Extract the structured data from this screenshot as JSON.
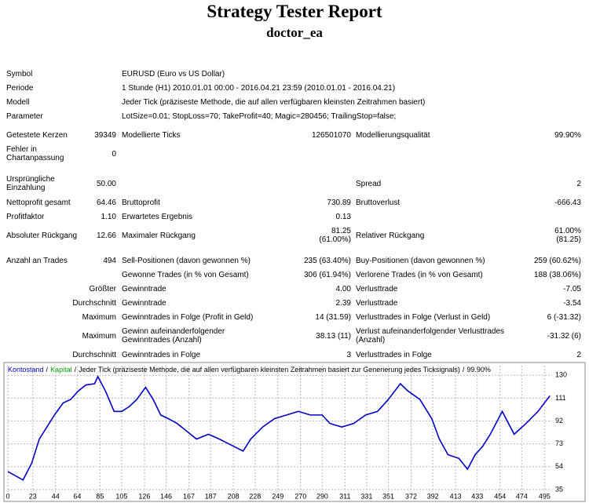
{
  "header": {
    "title": "Strategy Tester Report",
    "subtitle": "doctor_ea"
  },
  "settings": [
    {
      "label": "Symbol",
      "value": "EURUSD (Euro vs US Dollar)"
    },
    {
      "label": "Periode",
      "value": "1 Stunde (H1) 2010.01.01 00:00 - 2016.04.21 23:59 (2010.01.01 - 2016.04.21)"
    },
    {
      "label": "Modell",
      "value": "Jeder Tick (präziseste Methode, die auf allen verfügbaren kleinsten Zeitrahmen basiert)"
    },
    {
      "label": "Parameter",
      "value": "LotSize=0.01; StopLoss=70; TakeProfit=40; Magic=280456; TrailingStop=false;"
    }
  ],
  "stats": [
    [
      "Getestete Kerzen",
      "39349",
      "Modellierte Ticks",
      "126501070",
      "Modellierungsqualität",
      "99.90%"
    ],
    [
      "Fehler in Chartanpassung",
      "0",
      null,
      null,
      null,
      null
    ],
    [
      "Ursprüngliche Einzahlung",
      "50.00",
      null,
      null,
      "Spread",
      "2"
    ],
    [
      "Nettoprofit gesamt",
      "64.46",
      "Bruttoprofit",
      "730.89",
      "Bruttoverlust",
      "-666.43"
    ],
    [
      "Profitfaktor",
      "1.10",
      "Erwartetes Ergebnis",
      "0.13",
      null,
      null
    ],
    [
      "Absoluter Rückgang",
      "12.66",
      "Maximaler Rückgang",
      "81.25 (61.00%)",
      "Relativer Rückgang",
      "61.00% (81.25)"
    ],
    [
      "Anzahl an Trades",
      "494",
      "Sell-Positionen (davon gewonnen %)",
      "235 (63.40%)",
      "Buy-Positionen (davon gewonnen %)",
      "259 (60.62%)"
    ],
    [
      null,
      null,
      "Gewonne Trades (in % von Gesamt)",
      "306 (61.94%)",
      "Verlorene Trades (in % von Gesamt)",
      "188 (38.06%)"
    ],
    [
      null,
      "Größter",
      "Gewinntrade",
      "4.00",
      "Verlusttrade",
      "-7.05"
    ],
    [
      null,
      "Durchschnitt",
      "Gewinntrade",
      "2.39",
      "Verlusttrade",
      "-3.54"
    ],
    [
      null,
      "Maximum",
      "Gewinntrades in Folge (Profit in Geld)",
      "14 (31.59)",
      "Verlusttrades in Folge (Verlust in Geld)",
      "6 (-31.32)"
    ],
    [
      null,
      "Maximum",
      "Gewinn aufeinanderfolgender Gewinntrades (Anzahl)",
      "38.13 (11)",
      "Verlust aufeinanderfolgender Verlusttrades (Anzahl)",
      "-31.32 (6)"
    ],
    [
      null,
      "Durchschnitt",
      "Gewinntrades in Folge",
      "3",
      "Verlusttrades in Folge",
      "2"
    ]
  ],
  "chart_data": {
    "type": "line",
    "legend": {
      "equity": "Kapital",
      "equity_color": "#00a000",
      "separator": "/",
      "model": "Jeder Tick (präziseste Methode, die auf allen verfügbaren kleinsten Zeitrahmen basiert zur Generierung jedes Ticksignals)",
      "quality": "99.90%"
    },
    "x": [
      0,
      14,
      22,
      29,
      36,
      43,
      51,
      58,
      65,
      72,
      80,
      83,
      90,
      98,
      105,
      112,
      119,
      127,
      134,
      141,
      148,
      156,
      163,
      174,
      185,
      195,
      206,
      217,
      224,
      235,
      246,
      257,
      268,
      279,
      290,
      297,
      308,
      319,
      330,
      341,
      351,
      362,
      369,
      380,
      391,
      398,
      406,
      416,
      424,
      431,
      438,
      445,
      456,
      467,
      478,
      489,
      500
    ],
    "series": [
      {
        "name": "Kontostand",
        "color": "#0000c8",
        "values": [
          50,
          43,
          57,
          77,
          87,
          97,
          107,
          110,
          117,
          122,
          123,
          129,
          117,
          100,
          100,
          104,
          110,
          120,
          110,
          97,
          94,
          90,
          85,
          77,
          81,
          77,
          72,
          67,
          77,
          87,
          94,
          97,
          100,
          97,
          97,
          90,
          87,
          90,
          97,
          100,
          110,
          123,
          117,
          110,
          94,
          77,
          64,
          61,
          52,
          64,
          71,
          81,
          100,
          81,
          90,
          100,
          113
        ]
      }
    ],
    "xlim": [
      0,
      502
    ],
    "ylim": [
      33,
      138
    ],
    "xticks": [
      0,
      23,
      44,
      64,
      85,
      105,
      126,
      146,
      167,
      187,
      208,
      228,
      249,
      270,
      290,
      311,
      331,
      351,
      372,
      392,
      413,
      433,
      454,
      474,
      495
    ],
    "yticks": [
      130,
      111,
      92,
      73,
      54,
      35
    ],
    "grid": true
  }
}
